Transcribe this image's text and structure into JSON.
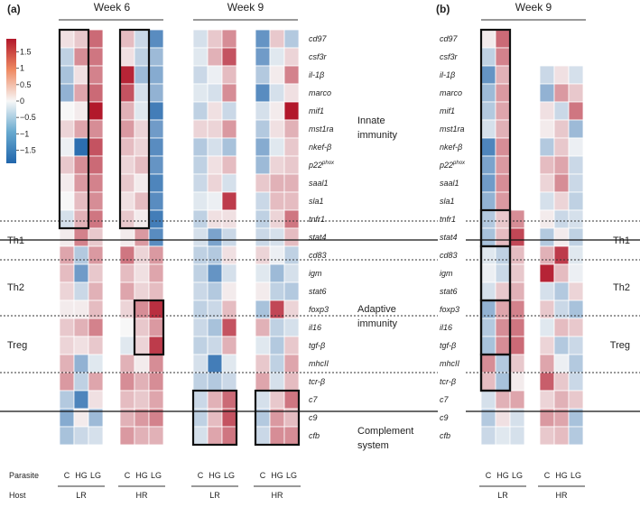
{
  "chart_data": {
    "type": "heatmap",
    "colorbar": {
      "ticks": [
        "1.5",
        "1",
        "0.5",
        "0",
        "−0.5",
        "−1",
        "−1.5"
      ],
      "range": [
        -1.9,
        1.9
      ],
      "colors": {
        "low": "#2166ac",
        "mid": "#f7f7f7",
        "high": "#b2182b"
      }
    },
    "panels": [
      {
        "label": "(a)",
        "weeks": [
          "Week 6",
          "Week 9"
        ],
        "genes": [
          "cd97",
          "csf3r",
          "il-1β",
          "marco",
          "mif1",
          "mst1ra",
          "nkef-β",
          "p22phox",
          "saal1",
          "sla1",
          "tnfr1",
          "stat4",
          "cd83",
          "igm",
          "stat6",
          "foxp3",
          "il16",
          "tgf-β",
          "mhcII",
          "tcr-β",
          "c7",
          "c9",
          "cfb"
        ],
        "gene_display": [
          {
            "base": "cd97",
            "sup": ""
          },
          {
            "base": "csf3r",
            "sup": ""
          },
          {
            "base": "il-1β",
            "sup": ""
          },
          {
            "base": "marco",
            "sup": ""
          },
          {
            "base": "mif1",
            "sup": ""
          },
          {
            "base": "mst1ra",
            "sup": ""
          },
          {
            "base": "nkef-β",
            "sup": ""
          },
          {
            "base": "p22",
            "sup": "phox"
          },
          {
            "base": "saal1",
            "sup": ""
          },
          {
            "base": "sla1",
            "sup": ""
          },
          {
            "base": "tnfr1",
            "sup": ""
          },
          {
            "base": "stat4",
            "sup": ""
          },
          {
            "base": "cd83",
            "sup": ""
          },
          {
            "base": "igm",
            "sup": ""
          },
          {
            "base": "stat6",
            "sup": ""
          },
          {
            "base": "foxp3",
            "sup": ""
          },
          {
            "base": "il16",
            "sup": ""
          },
          {
            "base": "tgf-β",
            "sup": ""
          },
          {
            "base": "mhcII",
            "sup": ""
          },
          {
            "base": "tcr-β",
            "sup": ""
          },
          {
            "base": "c7",
            "sup": ""
          },
          {
            "base": "c9",
            "sup": ""
          },
          {
            "base": "cfb",
            "sup": ""
          }
        ],
        "blocks": [
          {
            "week": "Week 6",
            "host": "LR",
            "parasites": [
              "C",
              "HG",
              "LG"
            ],
            "values": [
              [
                0.2,
                0.4,
                1.2
              ],
              [
                -0.5,
                0.9,
                1.1
              ],
              [
                -0.7,
                0.2,
                1.0
              ],
              [
                -0.9,
                0.7,
                1.2
              ],
              [
                0.0,
                0.1,
                1.9
              ],
              [
                0.3,
                0.7,
                0.9
              ],
              [
                -0.1,
                -1.8,
                1.4
              ],
              [
                0.4,
                0.9,
                1.2
              ],
              [
                0.1,
                0.8,
                1.0
              ],
              [
                0.0,
                0.5,
                0.9
              ],
              [
                -0.3,
                0.6,
                1.1
              ],
              [
                0.1,
                1.0,
                0.4
              ],
              [
                0.7,
                -0.6,
                0.8
              ],
              [
                0.5,
                -1.2,
                0.4
              ],
              [
                0.3,
                -0.4,
                0.6
              ],
              [
                0.1,
                0.1,
                0.5
              ],
              [
                0.4,
                0.6,
                1.0
              ],
              [
                0.3,
                0.2,
                0.4
              ],
              [
                0.6,
                -0.9,
                -0.2
              ],
              [
                0.8,
                -0.5,
                0.7
              ],
              [
                -0.6,
                -1.5,
                0.2
              ],
              [
                -1.0,
                0.1,
                -0.8
              ],
              [
                -0.7,
                -0.4,
                -0.3
              ]
            ]
          },
          {
            "week": "Week 6",
            "host": "HR",
            "parasites": [
              "C",
              "HG",
              "LG"
            ],
            "values": [
              [
                0.5,
                -0.4,
                -1.4
              ],
              [
                0.2,
                -0.5,
                -0.8
              ],
              [
                1.8,
                -0.8,
                -1.0
              ],
              [
                1.4,
                -0.3,
                -0.9
              ],
              [
                0.6,
                -0.2,
                -1.6
              ],
              [
                0.8,
                0.3,
                -1.2
              ],
              [
                0.5,
                0.3,
                -1.4
              ],
              [
                0.3,
                0.5,
                -1.3
              ],
              [
                0.4,
                0.1,
                -1.5
              ],
              [
                0.2,
                0.5,
                -1.4
              ],
              [
                0.4,
                0.1,
                -1.6
              ],
              [
                0.1,
                0.8,
                -1.4
              ],
              [
                1.1,
                0.3,
                0.8
              ],
              [
                0.5,
                0.2,
                0.7
              ],
              [
                0.7,
                0.3,
                0.5
              ],
              [
                0.3,
                0.9,
                1.7
              ],
              [
                0.0,
                0.4,
                0.8
              ],
              [
                -0.2,
                0.3,
                1.6
              ],
              [
                0.6,
                0.1,
                0.9
              ],
              [
                0.9,
                0.6,
                0.9
              ],
              [
                0.5,
                0.4,
                0.7
              ],
              [
                0.6,
                0.8,
                1.0
              ],
              [
                0.8,
                0.6,
                0.6
              ]
            ]
          },
          {
            "week": "Week 9",
            "host": "LR",
            "parasites": [
              "C",
              "HG",
              "LG"
            ],
            "values": [
              [
                -0.3,
                0.4,
                0.9
              ],
              [
                -0.2,
                0.6,
                1.4
              ],
              [
                -0.4,
                -0.1,
                0.5
              ],
              [
                -0.2,
                -0.3,
                0.9
              ],
              [
                -0.5,
                0.2,
                -0.4
              ],
              [
                0.3,
                0.3,
                0.8
              ],
              [
                -0.6,
                -0.3,
                -0.7
              ],
              [
                -0.5,
                0.2,
                0.5
              ],
              [
                -0.4,
                0.3,
                -0.3
              ],
              [
                -0.2,
                -0.1,
                1.6
              ],
              [
                -0.5,
                0.2,
                0.2
              ],
              [
                -0.3,
                -1.1,
                -0.4
              ],
              [
                -0.5,
                -0.6,
                0.2
              ],
              [
                -0.5,
                -1.3,
                -0.3
              ],
              [
                -0.4,
                -0.6,
                0.1
              ],
              [
                -0.5,
                -0.4,
                0.5
              ],
              [
                -0.4,
                -0.7,
                1.4
              ],
              [
                -0.5,
                -0.4,
                0.6
              ],
              [
                -0.3,
                -1.6,
                -0.2
              ],
              [
                -0.5,
                -0.6,
                -0.4
              ],
              [
                -0.4,
                0.6,
                1.2
              ],
              [
                -0.5,
                0.5,
                1.4
              ],
              [
                -0.3,
                0.7,
                1.1
              ]
            ]
          },
          {
            "week": "Week 9",
            "host": "HR",
            "parasites": [
              "C",
              "HG",
              "LG"
            ],
            "values": [
              [
                -1.3,
                0.4,
                -0.6
              ],
              [
                -1.2,
                -0.2,
                0.3
              ],
              [
                -0.6,
                0.1,
                1.0
              ],
              [
                -1.4,
                -0.3,
                0.2
              ],
              [
                -0.3,
                0.1,
                1.9
              ],
              [
                -0.6,
                0.2,
                0.6
              ],
              [
                -1.0,
                -0.2,
                0.4
              ],
              [
                -0.8,
                0.3,
                0.4
              ],
              [
                0.4,
                0.6,
                0.6
              ],
              [
                -0.4,
                0.5,
                0.5
              ],
              [
                -0.5,
                0.3,
                1.1
              ],
              [
                -0.4,
                -0.3,
                0.5
              ],
              [
                0.3,
                -0.1,
                -0.5
              ],
              [
                -0.2,
                -0.8,
                -0.3
              ],
              [
                0.1,
                -0.5,
                -0.6
              ],
              [
                -0.7,
                1.5,
                0.3
              ],
              [
                0.6,
                -0.5,
                -0.3
              ],
              [
                -0.2,
                -0.6,
                0.4
              ],
              [
                0.4,
                -0.5,
                0.7
              ],
              [
                0.7,
                -0.3,
                0.5
              ],
              [
                -0.3,
                0.4,
                1.1
              ],
              [
                -0.6,
                0.8,
                0.5
              ],
              [
                -0.4,
                0.9,
                0.9
              ]
            ]
          }
        ],
        "highlight_boxes": [
          {
            "block": 0,
            "cols": [
              0,
              1
            ],
            "rows": [
              0,
              10
            ]
          },
          {
            "block": 1,
            "cols": [
              0,
              1
            ],
            "rows": [
              0,
              10
            ]
          },
          {
            "block": 1,
            "cols": [
              1,
              2
            ],
            "rows": [
              15,
              17
            ]
          },
          {
            "block": 2,
            "cols": [
              0,
              2
            ],
            "rows": [
              20,
              22
            ]
          },
          {
            "block": 3,
            "cols": [
              0,
              2
            ],
            "rows": [
              20,
              22
            ]
          }
        ],
        "categories": [
          "Innate immunity",
          "Adaptive immunity",
          "Complement system"
        ],
        "cell_types": [
          "Th1",
          "Th2",
          "Treg"
        ],
        "row_label": {
          "parasite": "Parasite",
          "host": "Host"
        }
      },
      {
        "label": "(b)",
        "weeks": [
          "Week 9"
        ],
        "genes": [
          "cd97",
          "csf3r",
          "il-1β",
          "marco",
          "mif1",
          "mst1ra",
          "nkef-β",
          "p22phox",
          "saal1",
          "sla1",
          "tnfr1",
          "stat4",
          "cd83",
          "igm",
          "stat6",
          "foxp3",
          "il16",
          "tgf-β",
          "mhcII",
          "tcr-β",
          "c7",
          "c9",
          "cfb"
        ],
        "blocks": [
          {
            "week": "Week 9",
            "host": "LR",
            "parasites": [
              "C",
              "HG",
              "LG"
            ],
            "values": [
              [
                0.1,
                1.2,
                null
              ],
              [
                -0.5,
                1.0,
                null
              ],
              [
                -1.3,
                0.6,
                null
              ],
              [
                -0.8,
                0.8,
                null
              ],
              [
                -0.6,
                0.7,
                null
              ],
              [
                -0.3,
                0.6,
                null
              ],
              [
                -1.5,
                0.9,
                null
              ],
              [
                -1.1,
                0.8,
                null
              ],
              [
                -1.2,
                0.9,
                null
              ],
              [
                -0.9,
                0.8,
                null
              ],
              [
                -0.6,
                0.4,
                0.9
              ],
              [
                -0.7,
                0.5,
                1.5
              ],
              [
                -0.2,
                -0.5,
                0.5
              ],
              [
                -0.1,
                -0.4,
                0.4
              ],
              [
                -0.3,
                0.4,
                0.6
              ],
              [
                -0.9,
                0.7,
                1.0
              ],
              [
                -0.6,
                0.9,
                1.1
              ],
              [
                -0.7,
                0.9,
                1.2
              ],
              [
                0.9,
                -0.6,
                0.4
              ],
              [
                0.5,
                -0.7,
                0.1
              ],
              [
                -0.3,
                0.6,
                0.7
              ],
              [
                -0.6,
                0.2,
                -0.3
              ],
              [
                -0.4,
                -0.2,
                -0.3
              ]
            ]
          },
          {
            "week": "Week 9",
            "host": "HR",
            "parasites": [
              "C",
              "HG",
              "LG"
            ],
            "values": [
              [
                null,
                null,
                null
              ],
              [
                null,
                null,
                null
              ],
              [
                -0.4,
                0.2,
                -0.3
              ],
              [
                -0.9,
                0.8,
                0.4
              ],
              [
                0.2,
                -0.4,
                1.1
              ],
              [
                0.1,
                0.4,
                -0.8
              ],
              [
                -0.6,
                0.4,
                -0.1
              ],
              [
                0.5,
                0.7,
                -0.4
              ],
              [
                0.3,
                0.9,
                -0.4
              ],
              [
                -0.3,
                0.3,
                -0.5
              ],
              [
                0.1,
                -0.4,
                -0.3
              ],
              [
                -0.6,
                0.1,
                -0.5
              ],
              [
                0.6,
                1.6,
                -0.2
              ],
              [
                1.8,
                0.5,
                -0.1
              ],
              [
                -0.3,
                -0.6,
                0.3
              ],
              [
                0.4,
                -0.4,
                -0.7
              ],
              [
                -0.2,
                0.5,
                0.4
              ],
              [
                0.3,
                -0.6,
                -0.4
              ],
              [
                0.7,
                -0.1,
                -0.6
              ],
              [
                1.3,
                0.4,
                -0.4
              ],
              [
                0.3,
                0.6,
                0.4
              ],
              [
                0.8,
                0.7,
                -0.7
              ],
              [
                0.4,
                0.5,
                -0.6
              ]
            ]
          }
        ],
        "highlight_boxes": [
          {
            "block": 0,
            "cols": [
              0,
              1
            ],
            "rows": [
              0,
              19
            ]
          }
        ],
        "cell_types": [
          "Th1",
          "Th2",
          "Treg"
        ]
      }
    ]
  }
}
